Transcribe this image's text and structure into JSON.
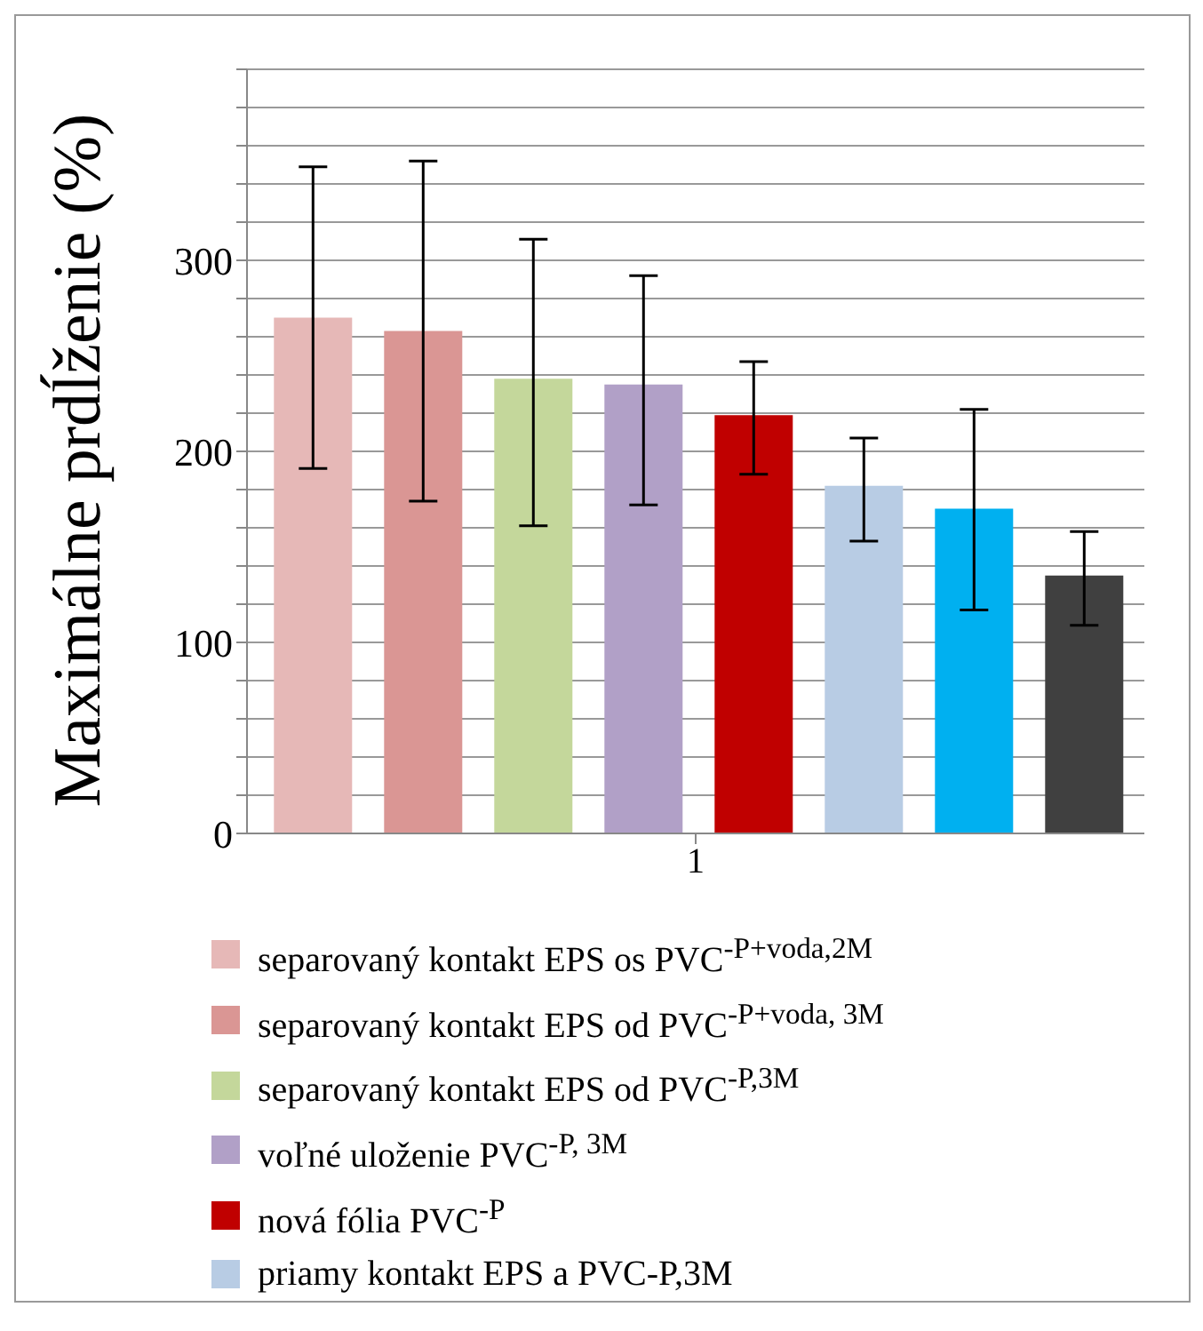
{
  "chart_data": {
    "type": "bar",
    "ylabel": "Maximálne prdĺženie (%)",
    "categories": [
      "1"
    ],
    "series": [
      {
        "name": "separovaný kontakt EPS os PVC$^{-P+voda,2M}$",
        "color": "#e6b8b7",
        "values": [
          270
        ],
        "errors": [
          [
            191,
            349
          ]
        ]
      },
      {
        "name": "separovaný kontakt EPS od PVC$^{-P+voda, 3M}$",
        "color": "#da9694",
        "values": [
          263
        ],
        "errors": [
          [
            174,
            352
          ]
        ]
      },
      {
        "name": "separovaný kontakt EPS od PVC$^{-P,3M}$",
        "color": "#c4d79b",
        "values": [
          238
        ],
        "errors": [
          [
            161,
            311
          ]
        ]
      },
      {
        "name": "voľné uloženie PVC$^{-P, 3M}$",
        "color": "#b1a0c7",
        "values": [
          235
        ],
        "errors": [
          [
            172,
            292
          ]
        ]
      },
      {
        "name": "nová fólia PVC$^{-P}$",
        "color": "#c00000",
        "values": [
          219
        ],
        "errors": [
          [
            188,
            247
          ]
        ]
      },
      {
        "name": "priamy kontakt EPS a PVC-P,3M",
        "color": "#b8cce4",
        "values": [
          182
        ],
        "errors": [
          [
            153,
            207
          ]
        ]
      },
      {
        "color": "#00b0f0",
        "values": [
          170
        ],
        "errors": [
          [
            117,
            222
          ]
        ]
      },
      {
        "color": "#404040",
        "values": [
          135
        ],
        "errors": [
          [
            109,
            158
          ]
        ]
      }
    ],
    "ylim": [
      0,
      400
    ],
    "yticks": [
      0,
      {
        "value": 20,
        "label": null
      },
      {
        "value": 40,
        "label": null
      },
      {
        "value": 60,
        "label": null
      },
      {
        "value": 80,
        "label": null
      },
      100,
      {
        "value": 120,
        "label": null
      },
      {
        "value": 140,
        "label": null
      },
      {
        "value": 160,
        "label": null
      },
      {
        "value": 180,
        "label": null
      },
      200,
      {
        "value": 220,
        "label": null
      },
      {
        "value": 240,
        "label": null
      },
      {
        "value": 260,
        "label": null
      },
      {
        "value": 280,
        "label": null
      },
      300,
      {
        "value": 320,
        "label": null
      },
      {
        "value": 340,
        "label": null
      },
      {
        "value": 360,
        "label": null
      },
      {
        "value": 380,
        "label": null
      },
      {
        "value": 400,
        "label": null
      }
    ],
    "grid": "y",
    "legend": "bottom"
  }
}
